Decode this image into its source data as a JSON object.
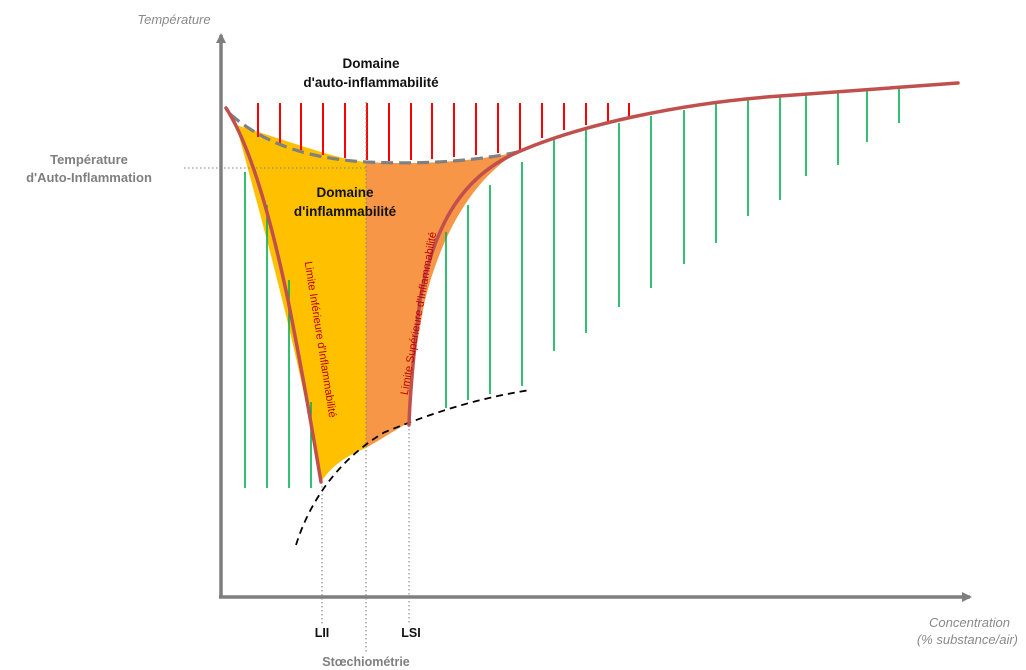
{
  "axes": {
    "y_title": "Température",
    "x_title_line1": "Concentration",
    "x_title_line2": "(% substance/air)"
  },
  "labels": {
    "ait_line1": "Température",
    "ait_line2": "d'Auto-Inflammation",
    "auto_domain_line1": "Domaine",
    "auto_domain_line2": "d'auto-inflammabilité",
    "flam_domain_line1": "Domaine",
    "flam_domain_line2": "d'inflammabilité",
    "lii_curve": "Limite Inférieure d'Inflammabilité",
    "lsi_curve": "Limite Supérieure d'Inflammabilité",
    "lii": "LII",
    "lsi": "LSI",
    "stoechiometrie": "Stœchiométrie"
  },
  "colors": {
    "axis": "#7f7f7f",
    "main_curve": "#c0504d",
    "lower_region": "#ffc000",
    "upper_region": "#f79646",
    "auto_hatch": "#ff0000",
    "non_flammable_hatch": "#00b050",
    "dashed_boundary": "#808080",
    "min_ignition_curve": "#000000"
  }
}
